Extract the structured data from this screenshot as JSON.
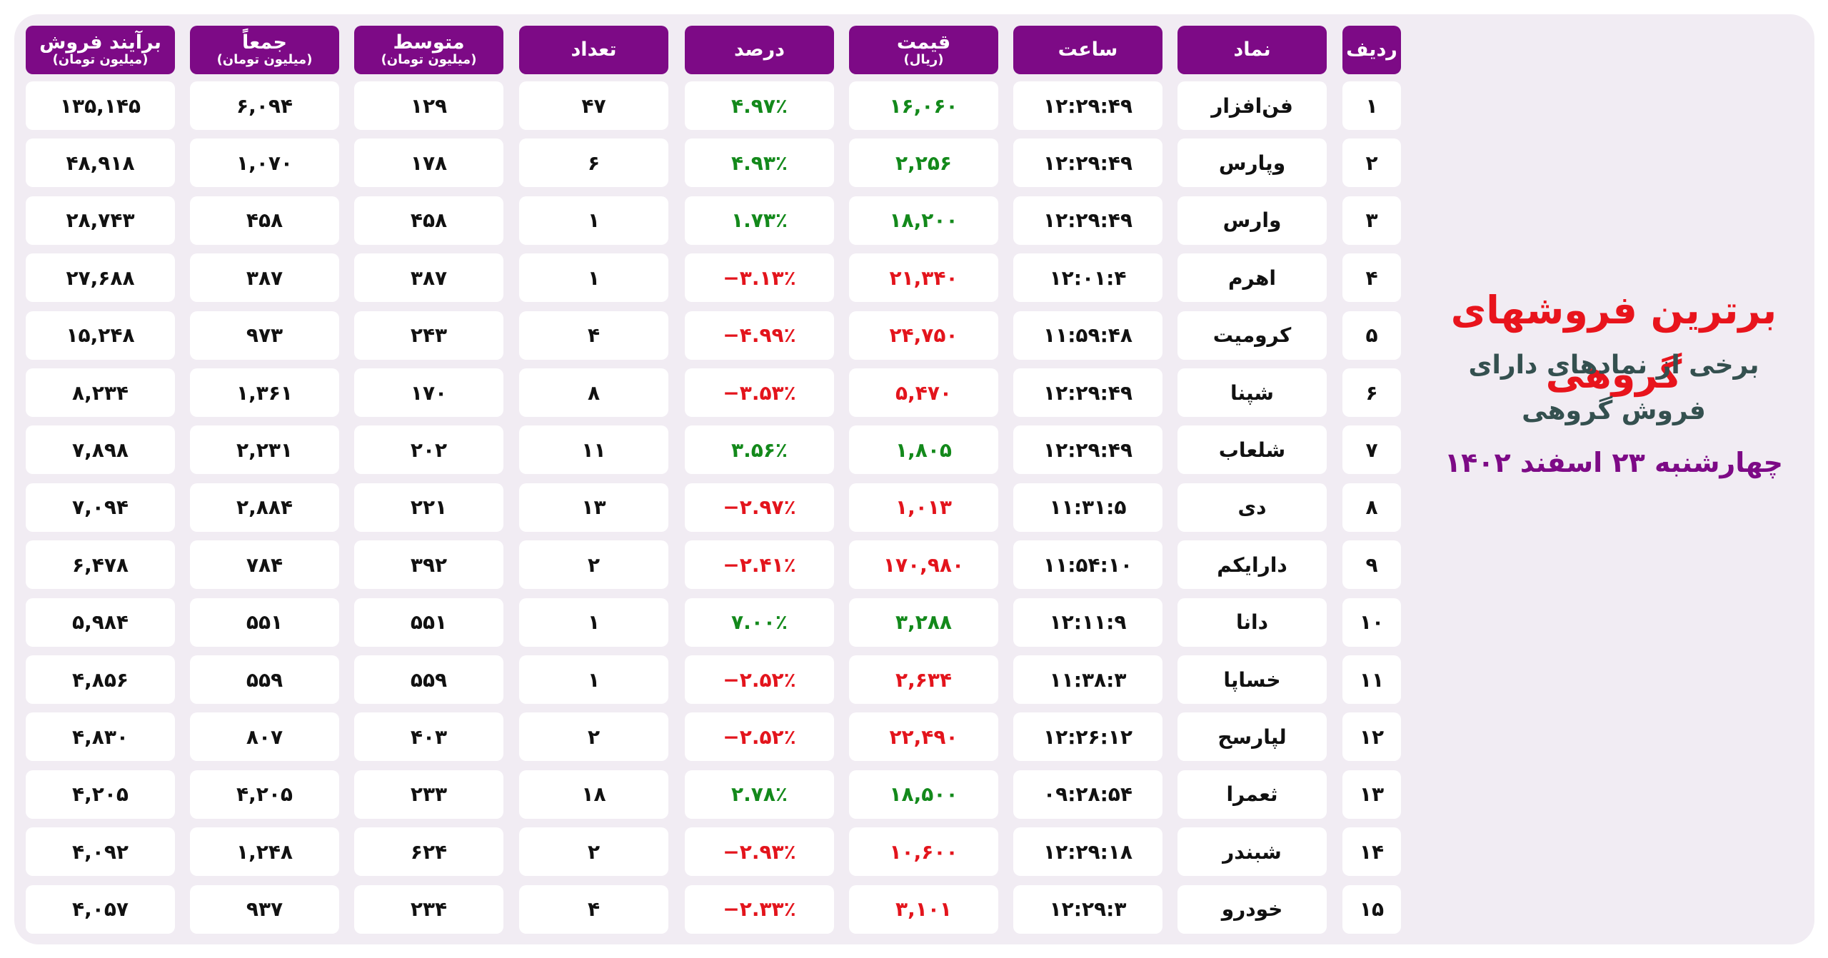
{
  "header": {
    "title": "برترین فروشهای گروهی",
    "subtitle_lines": [
      "برخی از نمادهای دارای",
      "فروش گروهی"
    ],
    "date": "چهارشنبه ۲۳ اسفند ۱۴۰۲"
  },
  "table": {
    "columns": [
      {
        "title": "ردیف"
      },
      {
        "title": "نماد"
      },
      {
        "title": "ساعت"
      },
      {
        "title": "قیمت",
        "unit": "(ریال)"
      },
      {
        "title": "درصد"
      },
      {
        "title": "تعداد"
      },
      {
        "title": "متوسط",
        "unit": "(میلیون تومان)"
      },
      {
        "title": "جمعاً",
        "unit": "(میلیون تومان)"
      },
      {
        "title": "برآیند فروش",
        "unit": "(میلیون تومان)"
      }
    ],
    "up_color": "#13891b",
    "down_color": "#e3141c",
    "rows": [
      [
        "۱",
        "فن‌افزار",
        "۱۲:۲۹:۴۹",
        "۱۶,۰۶۰",
        "۴.۹۷٪",
        "۴۷",
        "۱۲۹",
        "۶,۰۹۴",
        "۱۳۵,۱۴۵"
      ],
      [
        "۲",
        "وپارس",
        "۱۲:۲۹:۴۹",
        "۲,۲۵۶",
        "۴.۹۳٪",
        "۶",
        "۱۷۸",
        "۱,۰۷۰",
        "۴۸,۹۱۸"
      ],
      [
        "۳",
        "وارس",
        "۱۲:۲۹:۴۹",
        "۱۸,۲۰۰",
        "۱.۷۳٪",
        "۱",
        "۴۵۸",
        "۴۵۸",
        "۲۸,۷۴۳"
      ],
      [
        "۴",
        "اهرم",
        "۱۲:۰۱:۴",
        "۲۱,۳۴۰",
        "−۳.۱۳٪",
        "۱",
        "۳۸۷",
        "۳۸۷",
        "۲۷,۶۸۸"
      ],
      [
        "۵",
        "کرومیت",
        "۱۱:۵۹:۴۸",
        "۲۴,۷۵۰",
        "−۴.۹۹٪",
        "۴",
        "۲۴۳",
        "۹۷۳",
        "۱۵,۲۴۸"
      ],
      [
        "۶",
        "شپنا",
        "۱۲:۲۹:۴۹",
        "۵,۴۷۰",
        "−۳.۵۳٪",
        "۸",
        "۱۷۰",
        "۱,۳۶۱",
        "۸,۲۳۴"
      ],
      [
        "۷",
        "شلعاب",
        "۱۲:۲۹:۴۹",
        "۱,۸۰۵",
        "۳.۵۶٪",
        "۱۱",
        "۲۰۲",
        "۲,۲۳۱",
        "۷,۸۹۸"
      ],
      [
        "۸",
        "دی",
        "۱۱:۳۱:۵",
        "۱,۰۱۳",
        "−۲.۹۷٪",
        "۱۳",
        "۲۲۱",
        "۲,۸۸۴",
        "۷,۰۹۴"
      ],
      [
        "۹",
        "دارا‌یکم",
        "۱۱:۵۴:۱۰",
        "۱۷۰,۹۸۰",
        "−۲.۴۱٪",
        "۲",
        "۳۹۲",
        "۷۸۴",
        "۶,۴۷۸"
      ],
      [
        "۱۰",
        "دانا",
        "۱۲:۱۱:۹",
        "۳,۲۸۸",
        "۷.۰۰٪",
        "۱",
        "۵۵۱",
        "۵۵۱",
        "۵,۹۸۴"
      ],
      [
        "۱۱",
        "خساپا",
        "۱۱:۳۸:۳",
        "۲,۶۳۴",
        "−۲.۵۲٪",
        "۱",
        "۵۵۹",
        "۵۵۹",
        "۴,۸۵۶"
      ],
      [
        "۱۲",
        "لپارسح",
        "۱۲:۲۶:۱۲",
        "۲۲,۴۹۰",
        "−۲.۵۲٪",
        "۲",
        "۴۰۳",
        "۸۰۷",
        "۴,۸۳۰"
      ],
      [
        "۱۳",
        "ثعمرا",
        "۰۹:۲۸:۵۴",
        "۱۸,۵۰۰",
        "۲.۷۸٪",
        "۱۸",
        "۲۳۳",
        "۴,۲۰۵",
        "۴,۲۰۵"
      ],
      [
        "۱۴",
        "شبندر",
        "۱۲:۲۹:۱۸",
        "۱۰,۶۰۰",
        "−۲.۹۳٪",
        "۲",
        "۶۲۴",
        "۱,۲۴۸",
        "۴,۰۹۲"
      ],
      [
        "۱۵",
        "خودرو",
        "۱۲:۲۹:۳",
        "۳,۱۰۱",
        "−۲.۳۳٪",
        "۴",
        "۲۳۴",
        "۹۳۷",
        "۴,۰۵۷"
      ]
    ]
  }
}
